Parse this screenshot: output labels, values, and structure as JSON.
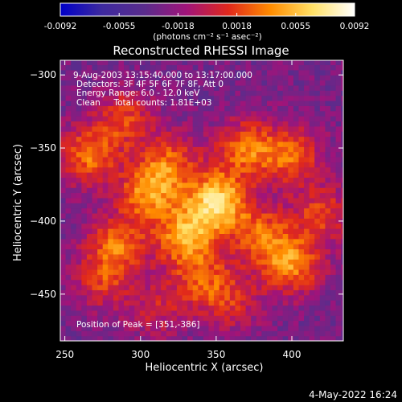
{
  "chart_data": {
    "type": "heatmap",
    "title": "Reconstructed RHESSI Image",
    "xlabel": "Heliocentric X (arcsec)",
    "ylabel": "Heliocentric Y (arcsec)",
    "xlim": [
      247,
      434
    ],
    "ylim": [
      -482,
      -290
    ],
    "xticks": [
      250,
      300,
      350,
      400
    ],
    "yticks": [
      -300,
      -350,
      -400,
      -450
    ],
    "colorbar": {
      "range": [
        -0.0092,
        0.0092
      ],
      "ticks": [
        "-0.0092",
        "-0.0055",
        "-0.0018",
        "0.0018",
        "0.0055",
        "0.0092"
      ],
      "units": "(photons cm⁻² s⁻¹ asec⁻²)",
      "colors": [
        "#0000c8",
        "#3e2a9e",
        "#5a2c8c",
        "#a0147a",
        "#e0281c",
        "#ff8c00",
        "#ffe066",
        "#ffffff"
      ]
    },
    "annotations": [
      "9-Aug-2003 13:15:40.000 to 13:17:00.000",
      "Detectors: 3F 4F 5F 6F 7F 8F, Att 0",
      "Energy Range: 6.0 - 12.0 keV",
      "Clean     Total counts: 1.81E+03"
    ],
    "peak_label": "Position of Peak = [351,-386]",
    "peak": [
      351,
      -386
    ],
    "sources": [
      {
        "x": 351,
        "y": -386,
        "amp": 0.0092
      },
      {
        "x": 330,
        "y": -410,
        "amp": 0.0075
      },
      {
        "x": 305,
        "y": -380,
        "amp": 0.0065
      },
      {
        "x": 370,
        "y": -350,
        "amp": 0.006
      },
      {
        "x": 400,
        "y": -355,
        "amp": 0.0055
      },
      {
        "x": 265,
        "y": -355,
        "amp": 0.006
      },
      {
        "x": 285,
        "y": -415,
        "amp": 0.0055
      },
      {
        "x": 400,
        "y": -430,
        "amp": 0.0065
      },
      {
        "x": 380,
        "y": -410,
        "amp": 0.0055
      },
      {
        "x": 320,
        "y": -360,
        "amp": 0.005
      },
      {
        "x": 290,
        "y": -330,
        "amp": 0.0045
      },
      {
        "x": 340,
        "y": -440,
        "amp": 0.0045
      },
      {
        "x": 275,
        "y": -440,
        "amp": 0.004
      },
      {
        "x": 420,
        "y": -395,
        "amp": 0.0045
      },
      {
        "x": 360,
        "y": -455,
        "amp": 0.0035
      },
      {
        "x": 310,
        "y": -460,
        "amp": 0.003
      }
    ]
  },
  "footer_date": "4-May-2022 16:24"
}
